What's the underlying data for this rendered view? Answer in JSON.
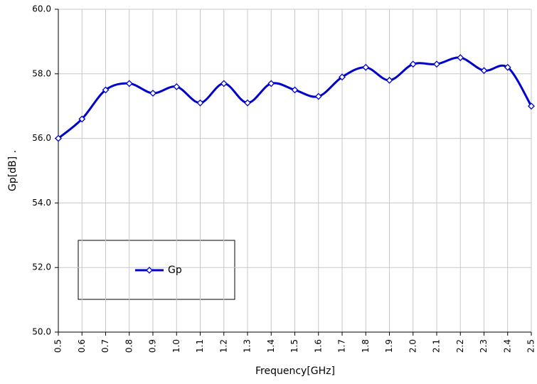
{
  "chart_data": {
    "type": "line",
    "xlabel": "Frequency[GHz]",
    "ylabel": "Gp[dB] .",
    "x": [
      0.5,
      0.6,
      0.7,
      0.8,
      0.9,
      1.0,
      1.1,
      1.2,
      1.3,
      1.4,
      1.5,
      1.6,
      1.7,
      1.8,
      1.9,
      2.0,
      2.1,
      2.2,
      2.3,
      2.4,
      2.5
    ],
    "series": [
      {
        "name": "Gp",
        "color": "#0000cc",
        "values": [
          56.0,
          56.6,
          57.5,
          57.7,
          57.4,
          57.6,
          57.1,
          57.7,
          57.1,
          57.7,
          57.5,
          57.3,
          57.9,
          58.2,
          57.8,
          58.3,
          58.3,
          58.5,
          58.1,
          58.2,
          57.0
        ]
      }
    ],
    "xlim": [
      0.5,
      2.5
    ],
    "xticks": [
      0.5,
      0.6,
      0.7,
      0.8,
      0.9,
      {
        "value": 1.0,
        "label": "1.0"
      },
      1.1,
      1.2,
      1.3,
      1.4,
      1.5,
      1.6,
      1.7,
      1.8,
      1.9,
      {
        "value": 2.0,
        "label": "2.0"
      },
      2.1,
      2.2,
      2.3,
      2.4,
      2.5
    ],
    "ylim": [
      50,
      60
    ],
    "yticks": [
      {
        "value": 50,
        "label": "50.0"
      },
      {
        "value": 52,
        "label": "52.0"
      },
      {
        "value": 54,
        "label": "54.0"
      },
      {
        "value": 56,
        "label": "56.0"
      },
      {
        "value": 58,
        "label": "58.0"
      },
      {
        "value": 60,
        "label": "60.0"
      }
    ],
    "grid": true
  }
}
